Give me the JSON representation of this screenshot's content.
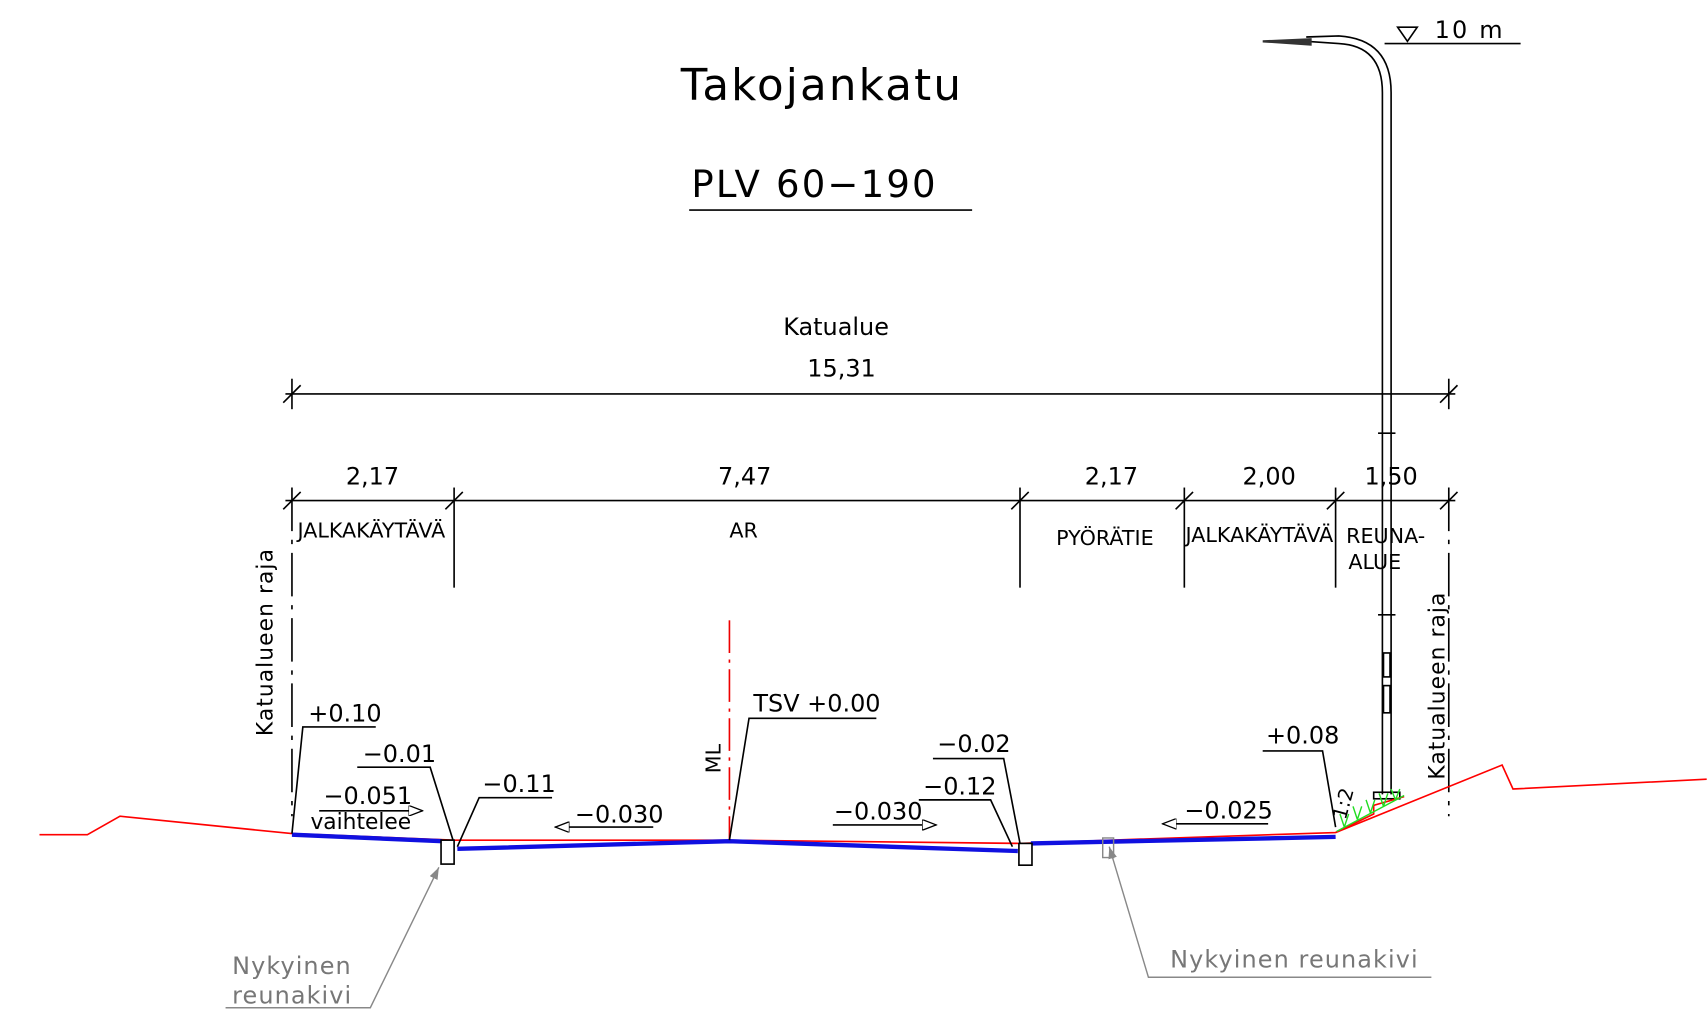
{
  "title": "Takojankatu",
  "subtitle": "PLV 60−190",
  "level": "10 m",
  "street_area": {
    "label": "Katualue",
    "width": "15,31"
  },
  "sections": [
    {
      "width": "2,17",
      "label": [
        "JALKAKÄYTÄVÄ"
      ]
    },
    {
      "width": "7,47",
      "label": [
        "AR"
      ]
    },
    {
      "width": "2,17",
      "label": [
        "PYÖRÄTIE"
      ]
    },
    {
      "width": "2,00",
      "label": [
        "JALKAKÄYTÄVÄ"
      ]
    },
    {
      "width": "1,50",
      "label": [
        "REUNA-",
        "ALUE"
      ]
    }
  ],
  "boundary_labels": [
    "Katualueen raja",
    "Katualueen raja"
  ],
  "centerline": "ML",
  "elevations": [
    "+0.10",
    "−0.01",
    "−0.051",
    "vaihtelee",
    "−0.11",
    "−0.030",
    "TSV +0.00",
    "−0.030",
    "−0.02",
    "−0.12",
    "−0.025",
    "+0.08"
  ],
  "slope": "1:2",
  "notes": [
    [
      "Nykyinen",
      "reunakivi"
    ],
    [
      "Nykyinen reunakivi"
    ]
  ]
}
